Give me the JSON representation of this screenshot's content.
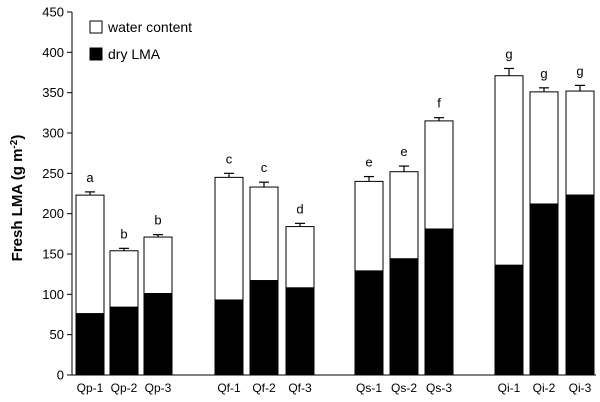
{
  "chart_data": {
    "type": "bar",
    "stacked": true,
    "categories": [
      "Qp-1",
      "Qp-2",
      "Qp-3",
      "Qf-1",
      "Qf-2",
      "Qf-3",
      "Qs-1",
      "Qs-2",
      "Qs-3",
      "Qi-1",
      "Qi-2",
      "Qi-3"
    ],
    "groups": [
      {
        "members": [
          "Qp-1",
          "Qp-2",
          "Qp-3"
        ]
      },
      {
        "members": [
          "Qf-1",
          "Qf-2",
          "Qf-3"
        ]
      },
      {
        "members": [
          "Qs-1",
          "Qs-2",
          "Qs-3"
        ]
      },
      {
        "members": [
          "Qi-1",
          "Qi-2",
          "Qi-3"
        ]
      }
    ],
    "series": [
      {
        "name": "dry LMA",
        "color": "#000000",
        "values": [
          76,
          84,
          101,
          93,
          117,
          108,
          129,
          144,
          181,
          136,
          212,
          223
        ]
      },
      {
        "name": "water content",
        "color": "#ffffff",
        "values": [
          147,
          70,
          70,
          152,
          116,
          76,
          111,
          108,
          134,
          235,
          139,
          129
        ]
      }
    ],
    "totals": [
      223,
      154,
      171,
      245,
      233,
      184,
      240,
      252,
      315,
      371,
      351,
      352
    ],
    "error_bars": [
      4,
      3,
      3,
      5,
      6,
      4,
      6,
      7,
      4,
      9,
      5,
      7
    ],
    "significance_labels": [
      "a",
      "b",
      "b",
      "c",
      "c",
      "d",
      "e",
      "e",
      "f",
      "g",
      "g",
      "g"
    ],
    "xlabel": "",
    "ylabel": {
      "prefix": "Fresh LMA (g m",
      "superscript": "-2",
      "suffix": ")"
    },
    "ylim": [
      0,
      450
    ],
    "yticks": [
      0,
      50,
      100,
      150,
      200,
      250,
      300,
      350,
      400,
      450
    ],
    "legend": {
      "placement": "top-left",
      "entries": [
        {
          "label": "water content",
          "color": "#ffffff"
        },
        {
          "label": "dry LMA",
          "color": "#000000"
        }
      ]
    },
    "grid": false
  }
}
